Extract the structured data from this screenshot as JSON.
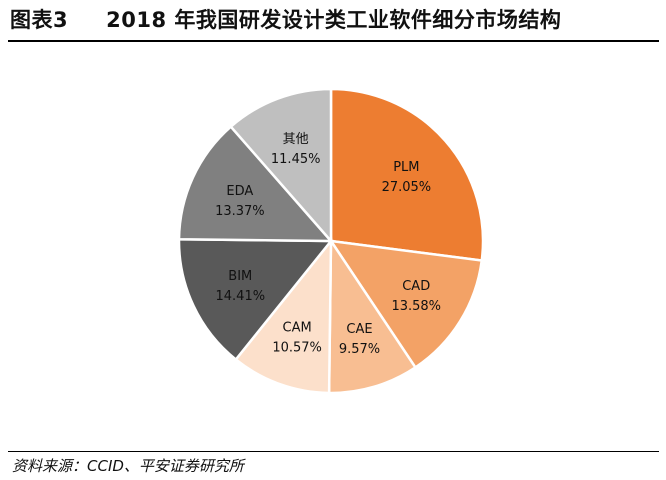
{
  "title": {
    "number": "图表3",
    "text": "2018 年我国研发设计类工业软件细分市场结构"
  },
  "source": "资料来源：CCID、平安证券研究所",
  "chart_data": {
    "type": "pie",
    "start": "top, clockwise",
    "categories": [
      "PLM",
      "CAD",
      "CAE",
      "CAM",
      "BIM",
      "EDA",
      "其他"
    ],
    "values": [
      27.05,
      13.58,
      9.57,
      10.57,
      14.41,
      13.37,
      11.45
    ],
    "data_labels": [
      "27.05%",
      "13.58%",
      "9.57%",
      "10.57%",
      "14.41%",
      "13.37%",
      "11.45%"
    ],
    "colors": [
      "#ED7D31",
      "#F3A266",
      "#F8BE92",
      "#FCE0CB",
      "#595959",
      "#808080",
      "#BFBFBF"
    ],
    "legend": "none (labels inside slices)"
  }
}
